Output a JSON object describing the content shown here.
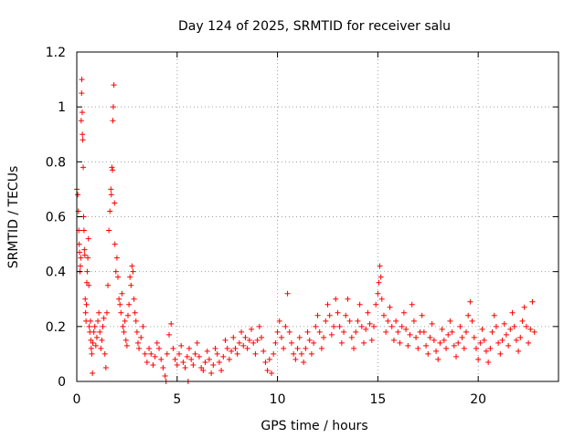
{
  "chart_data": {
    "type": "scatter",
    "title": "Day 124 of 2025, SRMTID for receiver salu",
    "xlabel": "GPS time / hours",
    "ylabel": "SRMTID / TECUs",
    "xlim": [
      0,
      24
    ],
    "ylim": [
      0,
      1.2
    ],
    "xticks": [
      0,
      5,
      10,
      15,
      20
    ],
    "yticks": [
      0,
      0.2,
      0.4,
      0.6,
      0.8,
      1,
      1.2
    ],
    "ytick_labels": [
      "0",
      "0.2",
      "0.4",
      "0.6",
      "0.8",
      "1",
      "1.2"
    ],
    "grid": true,
    "marker": "+",
    "color": "#ff0000",
    "series": [
      {
        "name": "salu",
        "points": [
          [
            0.0,
            0.7
          ],
          [
            0.05,
            0.68
          ],
          [
            0.08,
            0.62
          ],
          [
            0.1,
            0.55
          ],
          [
            0.12,
            0.5
          ],
          [
            0.14,
            0.47
          ],
          [
            0.16,
            0.4
          ],
          [
            0.18,
            0.42
          ],
          [
            0.2,
            0.45
          ],
          [
            0.22,
            0.95
          ],
          [
            0.24,
            1.05
          ],
          [
            0.25,
            1.1
          ],
          [
            0.27,
            0.98
          ],
          [
            0.28,
            0.9
          ],
          [
            0.3,
            0.88
          ],
          [
            0.32,
            0.78
          ],
          [
            0.34,
            0.6
          ],
          [
            0.36,
            0.55
          ],
          [
            0.38,
            0.48
          ],
          [
            0.4,
            0.46
          ],
          [
            0.42,
            0.3
          ],
          [
            0.44,
            0.25
          ],
          [
            0.46,
            0.22
          ],
          [
            0.48,
            0.28
          ],
          [
            0.5,
            0.36
          ],
          [
            0.52,
            0.4
          ],
          [
            0.55,
            0.45
          ],
          [
            0.58,
            0.52
          ],
          [
            0.6,
            0.35
          ],
          [
            0.62,
            0.2
          ],
          [
            0.65,
            0.18
          ],
          [
            0.68,
            0.22
          ],
          [
            0.7,
            0.15
          ],
          [
            0.72,
            0.12
          ],
          [
            0.75,
            0.1
          ],
          [
            0.78,
            0.03
          ],
          [
            0.8,
            0.14
          ],
          [
            0.85,
            0.18
          ],
          [
            0.9,
            0.2
          ],
          [
            0.95,
            0.13
          ],
          [
            1.0,
            0.16
          ],
          [
            1.05,
            0.22
          ],
          [
            1.1,
            0.25
          ],
          [
            1.15,
            0.18
          ],
          [
            1.2,
            0.12
          ],
          [
            1.25,
            0.15
          ],
          [
            1.3,
            0.2
          ],
          [
            1.35,
            0.23
          ],
          [
            1.4,
            0.1
          ],
          [
            1.45,
            0.05
          ],
          [
            1.5,
            0.25
          ],
          [
            1.55,
            0.35
          ],
          [
            1.6,
            0.55
          ],
          [
            1.65,
            0.62
          ],
          [
            1.7,
            0.7
          ],
          [
            1.72,
            0.68
          ],
          [
            1.75,
            0.78
          ],
          [
            1.78,
            0.77
          ],
          [
            1.8,
            0.95
          ],
          [
            1.82,
            1.0
          ],
          [
            1.85,
            1.08
          ],
          [
            1.88,
            0.65
          ],
          [
            1.9,
            0.5
          ],
          [
            1.95,
            0.4
          ],
          [
            2.0,
            0.45
          ],
          [
            2.05,
            0.38
          ],
          [
            2.1,
            0.3
          ],
          [
            2.15,
            0.28
          ],
          [
            2.2,
            0.25
          ],
          [
            2.25,
            0.32
          ],
          [
            2.3,
            0.2
          ],
          [
            2.35,
            0.18
          ],
          [
            2.4,
            0.22
          ],
          [
            2.45,
            0.15
          ],
          [
            2.5,
            0.13
          ],
          [
            2.55,
            0.24
          ],
          [
            2.6,
            0.28
          ],
          [
            2.65,
            0.38
          ],
          [
            2.7,
            0.35
          ],
          [
            2.75,
            0.42
          ],
          [
            2.8,
            0.4
          ],
          [
            2.85,
            0.3
          ],
          [
            2.9,
            0.25
          ],
          [
            2.95,
            0.22
          ],
          [
            3.0,
            0.18
          ],
          [
            3.05,
            0.14
          ],
          [
            3.1,
            0.12
          ],
          [
            3.2,
            0.16
          ],
          [
            3.3,
            0.2
          ],
          [
            3.4,
            0.1
          ],
          [
            3.5,
            0.07
          ],
          [
            3.6,
            0.12
          ],
          [
            3.7,
            0.1
          ],
          [
            3.8,
            0.06
          ],
          [
            3.9,
            0.09
          ],
          [
            4.0,
            0.14
          ],
          [
            4.1,
            0.12
          ],
          [
            4.2,
            0.08
          ],
          [
            4.3,
            0.05
          ],
          [
            4.4,
            0.02
          ],
          [
            4.45,
            0.0
          ],
          [
            4.5,
            0.1
          ],
          [
            4.6,
            0.17
          ],
          [
            4.7,
            0.21
          ],
          [
            4.8,
            0.12
          ],
          [
            4.9,
            0.08
          ],
          [
            5.0,
            0.06
          ],
          [
            5.1,
            0.1
          ],
          [
            5.2,
            0.13
          ],
          [
            5.3,
            0.07
          ],
          [
            5.4,
            0.05
          ],
          [
            5.5,
            0.09
          ],
          [
            5.55,
            0.0
          ],
          [
            5.6,
            0.12
          ],
          [
            5.7,
            0.08
          ],
          [
            5.8,
            0.06
          ],
          [
            5.9,
            0.1
          ],
          [
            6.0,
            0.14
          ],
          [
            6.1,
            0.09
          ],
          [
            6.2,
            0.05
          ],
          [
            6.3,
            0.04
          ],
          [
            6.4,
            0.07
          ],
          [
            6.5,
            0.11
          ],
          [
            6.6,
            0.08
          ],
          [
            6.7,
            0.03
          ],
          [
            6.8,
            0.06
          ],
          [
            6.9,
            0.12
          ],
          [
            7.0,
            0.1
          ],
          [
            7.1,
            0.07
          ],
          [
            7.2,
            0.04
          ],
          [
            7.3,
            0.09
          ],
          [
            7.4,
            0.15
          ],
          [
            7.5,
            0.12
          ],
          [
            7.6,
            0.08
          ],
          [
            7.7,
            0.11
          ],
          [
            7.8,
            0.16
          ],
          [
            7.9,
            0.12
          ],
          [
            8.0,
            0.1
          ],
          [
            8.1,
            0.14
          ],
          [
            8.2,
            0.18
          ],
          [
            8.3,
            0.13
          ],
          [
            8.4,
            0.16
          ],
          [
            8.5,
            0.12
          ],
          [
            8.6,
            0.15
          ],
          [
            8.7,
            0.19
          ],
          [
            8.8,
            0.14
          ],
          [
            8.9,
            0.1
          ],
          [
            9.0,
            0.15
          ],
          [
            9.1,
            0.2
          ],
          [
            9.2,
            0.16
          ],
          [
            9.3,
            0.11
          ],
          [
            9.4,
            0.07
          ],
          [
            9.5,
            0.04
          ],
          [
            9.6,
            0.08
          ],
          [
            9.7,
            0.03
          ],
          [
            9.8,
            0.1
          ],
          [
            9.9,
            0.14
          ],
          [
            10.0,
            0.18
          ],
          [
            10.1,
            0.22
          ],
          [
            10.2,
            0.16
          ],
          [
            10.3,
            0.12
          ],
          [
            10.4,
            0.2
          ],
          [
            10.5,
            0.32
          ],
          [
            10.6,
            0.18
          ],
          [
            10.7,
            0.14
          ],
          [
            10.8,
            0.1
          ],
          [
            10.9,
            0.08
          ],
          [
            11.0,
            0.12
          ],
          [
            11.1,
            0.16
          ],
          [
            11.2,
            0.1
          ],
          [
            11.3,
            0.07
          ],
          [
            11.4,
            0.12
          ],
          [
            11.5,
            0.18
          ],
          [
            11.6,
            0.15
          ],
          [
            11.7,
            0.1
          ],
          [
            11.8,
            0.14
          ],
          [
            11.9,
            0.2
          ],
          [
            12.0,
            0.24
          ],
          [
            12.1,
            0.18
          ],
          [
            12.2,
            0.12
          ],
          [
            12.3,
            0.16
          ],
          [
            12.4,
            0.22
          ],
          [
            12.5,
            0.28
          ],
          [
            12.6,
            0.24
          ],
          [
            12.7,
            0.17
          ],
          [
            12.8,
            0.2
          ],
          [
            12.9,
            0.3
          ],
          [
            13.0,
            0.25
          ],
          [
            13.1,
            0.2
          ],
          [
            13.2,
            0.14
          ],
          [
            13.3,
            0.18
          ],
          [
            13.4,
            0.24
          ],
          [
            13.5,
            0.3
          ],
          [
            13.6,
            0.22
          ],
          [
            13.7,
            0.16
          ],
          [
            13.8,
            0.12
          ],
          [
            13.9,
            0.18
          ],
          [
            14.0,
            0.22
          ],
          [
            14.1,
            0.28
          ],
          [
            14.2,
            0.2
          ],
          [
            14.3,
            0.14
          ],
          [
            14.4,
            0.19
          ],
          [
            14.5,
            0.25
          ],
          [
            14.6,
            0.21
          ],
          [
            14.7,
            0.15
          ],
          [
            14.8,
            0.2
          ],
          [
            14.9,
            0.28
          ],
          [
            15.0,
            0.32
          ],
          [
            15.05,
            0.36
          ],
          [
            15.1,
            0.42
          ],
          [
            15.15,
            0.38
          ],
          [
            15.2,
            0.3
          ],
          [
            15.3,
            0.24
          ],
          [
            15.4,
            0.18
          ],
          [
            15.5,
            0.22
          ],
          [
            15.6,
            0.27
          ],
          [
            15.7,
            0.2
          ],
          [
            15.8,
            0.15
          ],
          [
            15.9,
            0.22
          ],
          [
            16.0,
            0.18
          ],
          [
            16.1,
            0.14
          ],
          [
            16.2,
            0.2
          ],
          [
            16.3,
            0.25
          ],
          [
            16.4,
            0.19
          ],
          [
            16.5,
            0.13
          ],
          [
            16.6,
            0.17
          ],
          [
            16.7,
            0.28
          ],
          [
            16.8,
            0.22
          ],
          [
            16.9,
            0.16
          ],
          [
            17.0,
            0.12
          ],
          [
            17.1,
            0.18
          ],
          [
            17.2,
            0.24
          ],
          [
            17.3,
            0.18
          ],
          [
            17.4,
            0.13
          ],
          [
            17.5,
            0.1
          ],
          [
            17.6,
            0.16
          ],
          [
            17.7,
            0.21
          ],
          [
            17.8,
            0.15
          ],
          [
            17.9,
            0.11
          ],
          [
            18.0,
            0.08
          ],
          [
            18.1,
            0.14
          ],
          [
            18.2,
            0.19
          ],
          [
            18.3,
            0.15
          ],
          [
            18.4,
            0.12
          ],
          [
            18.5,
            0.17
          ],
          [
            18.6,
            0.22
          ],
          [
            18.7,
            0.18
          ],
          [
            18.8,
            0.13
          ],
          [
            18.9,
            0.09
          ],
          [
            19.0,
            0.14
          ],
          [
            19.1,
            0.2
          ],
          [
            19.2,
            0.16
          ],
          [
            19.3,
            0.12
          ],
          [
            19.4,
            0.18
          ],
          [
            19.5,
            0.24
          ],
          [
            19.6,
            0.29
          ],
          [
            19.7,
            0.22
          ],
          [
            19.8,
            0.16
          ],
          [
            19.9,
            0.12
          ],
          [
            20.0,
            0.08
          ],
          [
            20.1,
            0.14
          ],
          [
            20.2,
            0.19
          ],
          [
            20.3,
            0.15
          ],
          [
            20.4,
            0.11
          ],
          [
            20.5,
            0.07
          ],
          [
            20.6,
            0.12
          ],
          [
            20.7,
            0.18
          ],
          [
            20.8,
            0.24
          ],
          [
            20.9,
            0.2
          ],
          [
            21.0,
            0.14
          ],
          [
            21.1,
            0.1
          ],
          [
            21.2,
            0.15
          ],
          [
            21.3,
            0.21
          ],
          [
            21.4,
            0.17
          ],
          [
            21.5,
            0.13
          ],
          [
            21.6,
            0.19
          ],
          [
            21.7,
            0.25
          ],
          [
            21.8,
            0.2
          ],
          [
            21.9,
            0.15
          ],
          [
            22.0,
            0.11
          ],
          [
            22.1,
            0.16
          ],
          [
            22.2,
            0.22
          ],
          [
            22.3,
            0.27
          ],
          [
            22.4,
            0.2
          ],
          [
            22.5,
            0.14
          ],
          [
            22.6,
            0.19
          ],
          [
            22.7,
            0.29
          ],
          [
            22.8,
            0.18
          ]
        ]
      }
    ]
  }
}
